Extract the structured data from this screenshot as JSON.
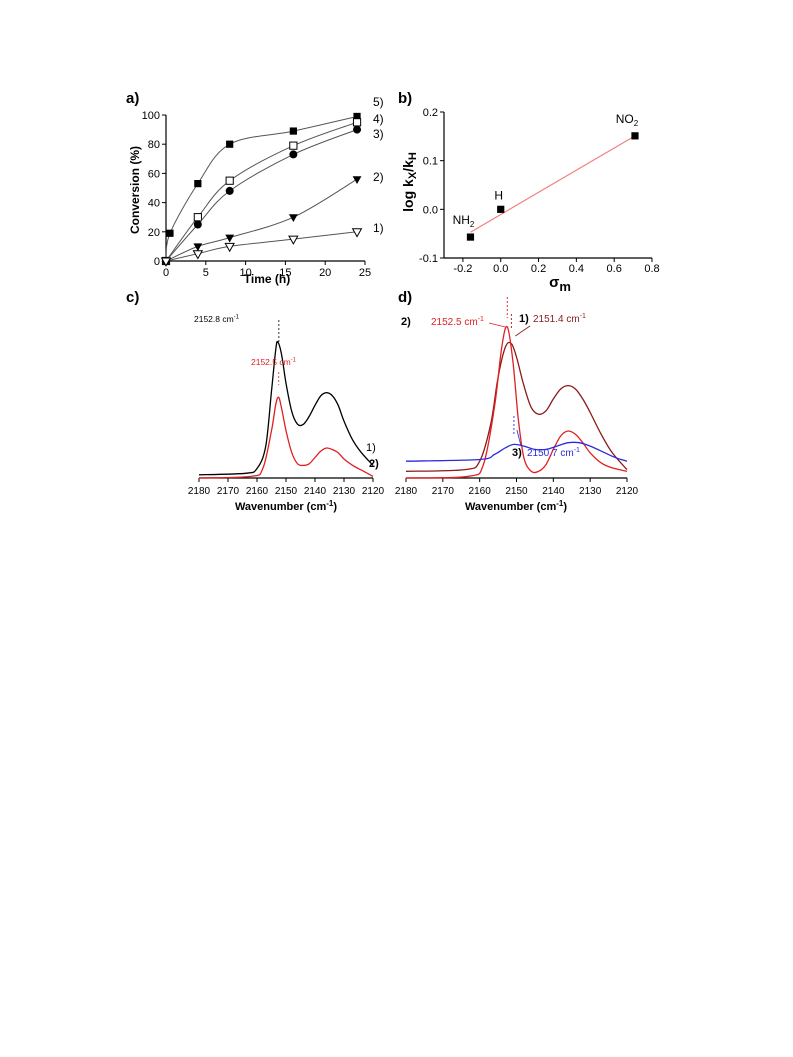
{
  "chart_data": [
    {
      "panel": "a)",
      "type": "line",
      "xlabel": "Time (h)",
      "ylabel": "Conversion (%)",
      "xlim": [
        0,
        25
      ],
      "ylim": [
        0,
        100
      ],
      "xticks": [
        0,
        5,
        10,
        15,
        20,
        25
      ],
      "yticks": [
        0,
        20,
        40,
        60,
        80,
        100
      ],
      "series": [
        {
          "name": "5)",
          "marker": "filled-square",
          "x": [
            0,
            0.5,
            4,
            8,
            16,
            24
          ],
          "y": [
            0,
            19,
            53,
            80,
            89,
            99
          ]
        },
        {
          "name": "4)",
          "marker": "open-square",
          "x": [
            0,
            4,
            8,
            16,
            24
          ],
          "y": [
            0,
            30,
            55,
            79,
            95
          ]
        },
        {
          "name": "3)",
          "marker": "filled-circle",
          "x": [
            0,
            4,
            8,
            16,
            24
          ],
          "y": [
            0,
            25,
            48,
            73,
            90
          ]
        },
        {
          "name": "2)",
          "marker": "filled-triangle-down",
          "x": [
            0,
            4,
            8,
            16,
            24
          ],
          "y": [
            0,
            10,
            16,
            30,
            56
          ]
        },
        {
          "name": "1)",
          "marker": "open-triangle-down",
          "x": [
            0,
            4,
            8,
            16,
            24
          ],
          "y": [
            0,
            5,
            10,
            15,
            20
          ]
        }
      ]
    },
    {
      "panel": "b)",
      "type": "scatter",
      "xlabel": "σm",
      "ylabel": "log kX/kH",
      "xlim": [
        -0.3,
        0.8
      ],
      "ylim": [
        -0.1,
        0.2
      ],
      "xticks": [
        "-0.2",
        "0.0",
        "0.2",
        "0.4",
        "0.6",
        "0.8"
      ],
      "yticks": [
        "-0.1",
        "0.0",
        "0.1",
        "0.2"
      ],
      "points": [
        {
          "label": "NH2",
          "x": -0.16,
          "y": -0.057
        },
        {
          "label": "H",
          "x": 0.0,
          "y": 0.0
        },
        {
          "label": "NO2",
          "x": 0.71,
          "y": 0.151
        }
      ],
      "fit_line": {
        "x": [
          -0.16,
          0.71
        ],
        "y": [
          -0.047,
          0.151
        ],
        "color": "#f08080"
      }
    },
    {
      "panel": "c)",
      "type": "line",
      "xlabel": "Wavenumber (cm-1)",
      "xlim": [
        2180,
        2120
      ],
      "xticks": [
        2180,
        2170,
        2160,
        2150,
        2140,
        2130,
        2120
      ],
      "series": [
        {
          "name": "1)",
          "color": "#000000",
          "x": [
            2180,
            2164,
            2160,
            2157,
            2155,
            2153.5,
            2152.8,
            2151.5,
            2150,
            2148,
            2146,
            2144,
            2142,
            2140,
            2138,
            2136,
            2134,
            2132,
            2130,
            2127,
            2124,
            2120
          ],
          "y": [
            0.02,
            0.03,
            0.06,
            0.2,
            0.55,
            0.82,
            0.86,
            0.78,
            0.6,
            0.42,
            0.34,
            0.34,
            0.39,
            0.46,
            0.52,
            0.54,
            0.52,
            0.46,
            0.36,
            0.24,
            0.16,
            0.08
          ]
        },
        {
          "name": "2)",
          "color": "#e02020",
          "x": [
            2180,
            2162,
            2158,
            2155,
            2153.5,
            2152.5,
            2151.5,
            2150,
            2148,
            2146,
            2144,
            2142,
            2140,
            2138,
            2136,
            2134,
            2132,
            2130,
            2127,
            2124,
            2120
          ],
          "y": [
            0.0,
            0.01,
            0.06,
            0.3,
            0.47,
            0.51,
            0.44,
            0.3,
            0.16,
            0.09,
            0.08,
            0.09,
            0.13,
            0.17,
            0.19,
            0.18,
            0.16,
            0.12,
            0.08,
            0.05,
            0.01
          ]
        }
      ],
      "annotations": [
        {
          "text": "2152.8 cm",
          "sup": "-1",
          "x": 2152.8,
          "color": "#000000"
        },
        {
          "text": "2152.5 cm",
          "sup": "-1",
          "x": 2152.5,
          "color": "#e02020"
        }
      ]
    },
    {
      "panel": "d)",
      "type": "line",
      "xlabel": "Wavenumber (cm-1)",
      "xlim": [
        2180,
        2120
      ],
      "xticks": [
        2180,
        2170,
        2160,
        2150,
        2140,
        2130,
        2120
      ],
      "series": [
        {
          "name": "1)",
          "color": "#8b1a1a",
          "x": [
            2180,
            2164,
            2160,
            2157,
            2155,
            2153,
            2151.4,
            2150,
            2148,
            2146,
            2144,
            2142,
            2140,
            2138,
            2136,
            2134,
            2132,
            2130,
            2127,
            2124,
            2120
          ],
          "y": [
            0.04,
            0.05,
            0.1,
            0.32,
            0.6,
            0.78,
            0.8,
            0.72,
            0.55,
            0.42,
            0.38,
            0.4,
            0.47,
            0.53,
            0.55,
            0.53,
            0.47,
            0.39,
            0.26,
            0.15,
            0.05
          ]
        },
        {
          "name": "2)",
          "color": "#e02020",
          "x": [
            2180,
            2163,
            2159,
            2156,
            2154,
            2152.5,
            2151,
            2149.5,
            2148,
            2146,
            2144,
            2142,
            2140,
            2138,
            2136,
            2134,
            2132,
            2130,
            2127,
            2124,
            2120
          ],
          "y": [
            0.0,
            0.01,
            0.08,
            0.42,
            0.78,
            0.9,
            0.7,
            0.35,
            0.12,
            0.04,
            0.04,
            0.08,
            0.17,
            0.25,
            0.28,
            0.26,
            0.21,
            0.15,
            0.09,
            0.06,
            0.04
          ]
        },
        {
          "name": "3)",
          "color": "#2a2ae0",
          "x": [
            2180,
            2160,
            2156,
            2153,
            2150.7,
            2148,
            2145,
            2142,
            2139,
            2136,
            2133,
            2130,
            2126,
            2123,
            2120
          ],
          "y": [
            0.1,
            0.11,
            0.14,
            0.18,
            0.2,
            0.19,
            0.17,
            0.17,
            0.19,
            0.21,
            0.21,
            0.19,
            0.15,
            0.12,
            0.1
          ]
        }
      ],
      "annotations": [
        {
          "text": "2152.5 cm",
          "sup": "-1",
          "series": "2)",
          "color": "#e02020"
        },
        {
          "text": "2151.4 cm",
          "sup": "-1",
          "series": "1)",
          "color": "#8b1a1a"
        },
        {
          "text": "2150.7 cm",
          "sup": "-1",
          "series": "3)",
          "color": "#2a2ae0"
        }
      ]
    }
  ]
}
